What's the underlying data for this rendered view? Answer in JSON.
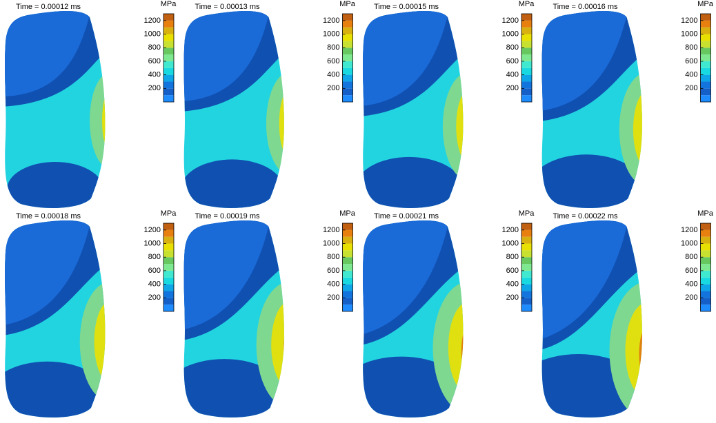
{
  "panels": [
    {
      "title": "Time = 0.00012 ms"
    },
    {
      "title": "Time = 0.00013 ms"
    },
    {
      "title": "Time = 0.00015 ms"
    },
    {
      "title": "Time = 0.00016 ms"
    },
    {
      "title": "Time = 0.00018 ms"
    },
    {
      "title": "Time = 0.00019 ms"
    },
    {
      "title": "Time = 0.00021 ms"
    },
    {
      "title": "Time = 0.00022 ms"
    }
  ],
  "colorbar": {
    "label": "MPa",
    "ticks": [
      200,
      400,
      600,
      800,
      1000,
      1200
    ]
  }
}
